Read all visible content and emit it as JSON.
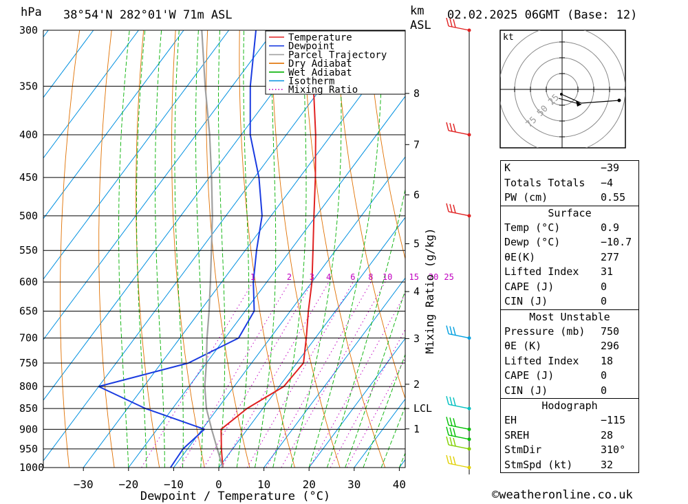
{
  "header": {
    "left_unit": "hPa",
    "location": "38°54'N  282°01'W  71m  ASL",
    "km_unit": "km",
    "asl_unit": "ASL",
    "datetime": "02.02.2025  06GMT  (Base: 12)"
  },
  "chart_data": {
    "type": "line",
    "subtype": "skew-t log-p sounding",
    "xlabel": "Dewpoint / Temperature (°C)",
    "ylabel": "hPa",
    "mixing_ratio_label": "Mixing Ratio (g/kg)",
    "xlim": [
      -40,
      40
    ],
    "ylim": [
      1000,
      300
    ],
    "x_ticks": [
      "-30",
      "-20",
      "-10",
      "0",
      "10",
      "20",
      "30",
      "40"
    ],
    "pressure_ticks": [
      "300",
      "350",
      "400",
      "450",
      "500",
      "550",
      "600",
      "650",
      "700",
      "750",
      "800",
      "850",
      "900",
      "950",
      "1000"
    ],
    "km_ticks": [
      {
        "label": "8",
        "p": 357
      },
      {
        "label": "7",
        "p": 411
      },
      {
        "label": "6",
        "p": 472
      },
      {
        "label": "5",
        "p": 540
      },
      {
        "label": "4",
        "p": 616
      },
      {
        "label": "3",
        "p": 701
      },
      {
        "label": "2",
        "p": 795
      },
      {
        "label": "LCL",
        "p": 850
      },
      {
        "label": "1",
        "p": 899
      }
    ],
    "mixing_ratio_ticks": [
      "1",
      "2",
      "3",
      "4",
      "6",
      "8",
      "10",
      "15",
      "20",
      "25"
    ],
    "legend": [
      {
        "name": "Temperature",
        "color": "#e02020",
        "style": "solid"
      },
      {
        "name": "Dewpoint",
        "color": "#1a3be0",
        "style": "solid"
      },
      {
        "name": "Parcel Trajectory",
        "color": "#a0a0a0",
        "style": "solid"
      },
      {
        "name": "Dry Adiabat",
        "color": "#e07000",
        "style": "solid"
      },
      {
        "name": "Wet Adiabat",
        "color": "#00b000",
        "style": "solid"
      },
      {
        "name": "Isotherm",
        "color": "#0090e0",
        "style": "solid"
      },
      {
        "name": "Mixing Ratio",
        "color": "#c000c0",
        "style": "dotted"
      }
    ],
    "legend_position": "top-right",
    "series": [
      {
        "name": "Temperature",
        "color": "#e02020",
        "points": [
          [
            1000,
            0.9
          ],
          [
            950,
            -2.5
          ],
          [
            900,
            -5.8
          ],
          [
            850,
            -3.5
          ],
          [
            800,
            1.0
          ],
          [
            750,
            1.5
          ],
          [
            700,
            -2.0
          ],
          [
            650,
            -6.0
          ],
          [
            600,
            -10.0
          ],
          [
            550,
            -15.0
          ],
          [
            500,
            -20.5
          ],
          [
            450,
            -26.5
          ],
          [
            400,
            -33.5
          ],
          [
            350,
            -42.0
          ],
          [
            300,
            -51.0
          ]
        ]
      },
      {
        "name": "Dewpoint",
        "color": "#1a3be0",
        "points": [
          [
            1000,
            -10.7
          ],
          [
            950,
            -11.0
          ],
          [
            900,
            -9.5
          ],
          [
            850,
            -26.0
          ],
          [
            800,
            -40.0
          ],
          [
            750,
            -24.0
          ],
          [
            700,
            -17.0
          ],
          [
            650,
            -18.0
          ],
          [
            600,
            -23.0
          ],
          [
            550,
            -27.5
          ],
          [
            500,
            -32.0
          ],
          [
            450,
            -39.0
          ],
          [
            400,
            -48.0
          ],
          [
            350,
            -56.0
          ],
          [
            300,
            -64.0
          ]
        ]
      },
      {
        "name": "Parcel Trajectory",
        "color": "#a0a0a0",
        "points": [
          [
            1000,
            0.9
          ],
          [
            950,
            -3.4
          ],
          [
            900,
            -7.9
          ],
          [
            850,
            -12.5
          ],
          [
            800,
            -16.5
          ],
          [
            750,
            -20.0
          ],
          [
            700,
            -24.0
          ],
          [
            650,
            -28.0
          ],
          [
            600,
            -32.5
          ],
          [
            550,
            -37.5
          ],
          [
            500,
            -43.0
          ],
          [
            450,
            -49.5
          ],
          [
            400,
            -57.0
          ],
          [
            350,
            -66.0
          ],
          [
            300,
            -76.0
          ]
        ]
      }
    ],
    "wind_barbs": [
      {
        "p": 300,
        "color": "#e02020"
      },
      {
        "p": 400,
        "color": "#e02020"
      },
      {
        "p": 500,
        "color": "#e02020"
      },
      {
        "p": 700,
        "color": "#00a0e0"
      },
      {
        "p": 850,
        "color": "#00c0c0"
      },
      {
        "p": 900,
        "color": "#00c000"
      },
      {
        "p": 925,
        "color": "#00c000"
      },
      {
        "p": 950,
        "color": "#80d000"
      },
      {
        "p": 1000,
        "color": "#e0d000"
      }
    ]
  },
  "hodograph": {
    "unit": "kt",
    "ring_labels": [
      "25",
      "50",
      "75"
    ]
  },
  "indices": {
    "general": [
      {
        "k": "K",
        "v": "-39"
      },
      {
        "k": "Totals Totals",
        "v": "-4"
      },
      {
        "k": "PW (cm)",
        "v": "0.55"
      }
    ],
    "surface_title": "Surface",
    "surface": [
      {
        "k": "Temp (°C)",
        "v": "0.9"
      },
      {
        "k": "Dewp (°C)",
        "v": "-10.7"
      },
      {
        "k": "θE(K)",
        "v": "277"
      },
      {
        "k": "Lifted Index",
        "v": "31"
      },
      {
        "k": "CAPE (J)",
        "v": "0"
      },
      {
        "k": "CIN (J)",
        "v": "0"
      }
    ],
    "mu_title": "Most Unstable",
    "mu": [
      {
        "k": "Pressure (mb)",
        "v": "750"
      },
      {
        "k": "θE (K)",
        "v": "296"
      },
      {
        "k": "Lifted Index",
        "v": "18"
      },
      {
        "k": "CAPE (J)",
        "v": "0"
      },
      {
        "k": "CIN (J)",
        "v": "0"
      }
    ],
    "hodo_title": "Hodograph",
    "hodo": [
      {
        "k": "EH",
        "v": "-115"
      },
      {
        "k": "SREH",
        "v": "28"
      },
      {
        "k": "StmDir",
        "v": "310°"
      },
      {
        "k": "StmSpd (kt)",
        "v": "32"
      }
    ]
  },
  "footer": {
    "credit": "©weatheronline.co.uk"
  }
}
